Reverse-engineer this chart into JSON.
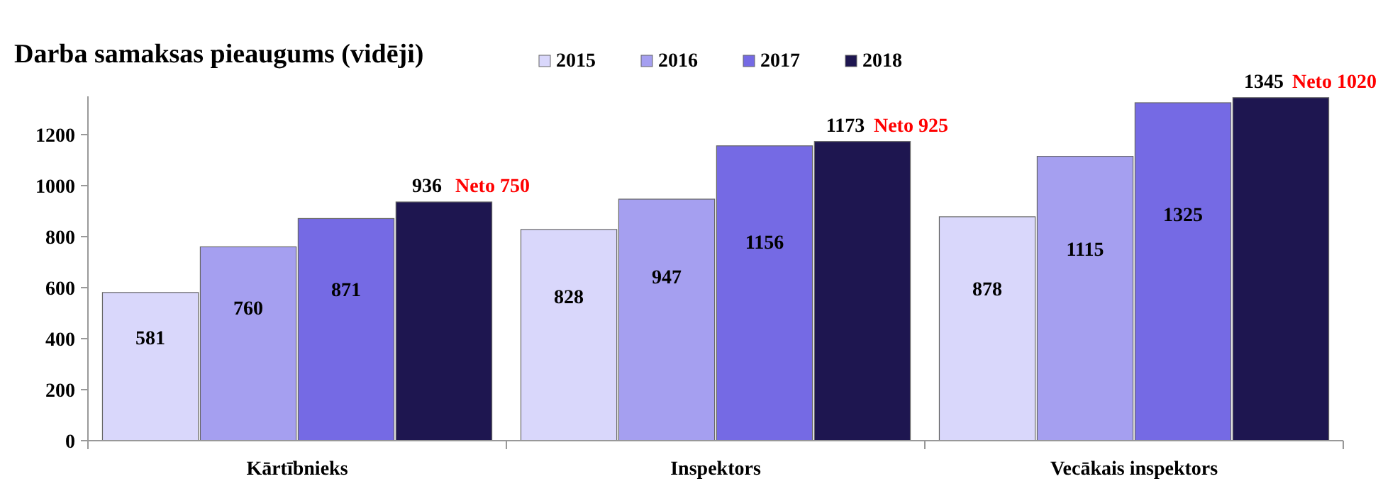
{
  "chart_data": {
    "type": "bar",
    "title": "Darba samaksas pieaugums (vidēji)",
    "categories": [
      "Kārtībnieks",
      "Inspektors",
      "Vecākais inspektors"
    ],
    "series": [
      {
        "name": "2015",
        "color": "#d9d7fb",
        "values": [
          581,
          828,
          878
        ]
      },
      {
        "name": "2016",
        "color": "#a59ff0",
        "values": [
          760,
          947,
          1115
        ]
      },
      {
        "name": "2017",
        "color": "#756ae4",
        "values": [
          871,
          1156,
          1325
        ]
      },
      {
        "name": "2018",
        "color": "#1e1650",
        "values": [
          936,
          1173,
          1345
        ]
      }
    ],
    "ylim": [
      0,
      1350
    ],
    "yticks": [
      0,
      200,
      400,
      600,
      800,
      1000,
      1200
    ],
    "grid": false,
    "legend": "top",
    "data_labels": true,
    "annotations": [
      "Neto 750",
      "Neto 925",
      "Neto 1020"
    ]
  }
}
